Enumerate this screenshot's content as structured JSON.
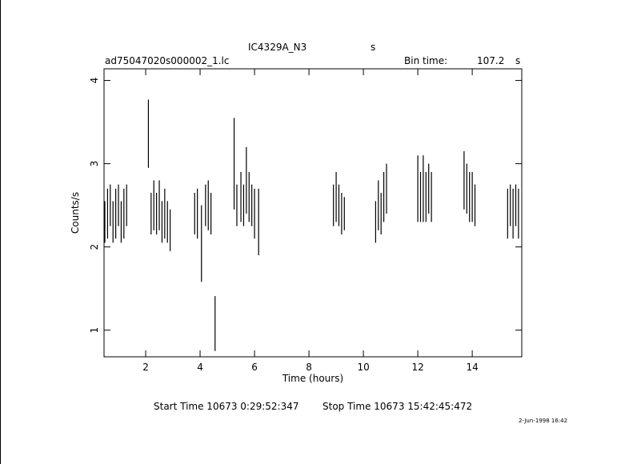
{
  "chart_data": {
    "type": "errorbar",
    "title": "IC4329A_N3",
    "title_unit": "s",
    "file_name": "ad75047020s000002_1.lc",
    "bin_time_label": "Bin time:",
    "bin_time": "107.2",
    "bin_time_unit": "s",
    "xlabel": "Time (hours)",
    "ylabel": "Counts/s",
    "start_time": "Start Time 10673  0:29:52:347",
    "stop_time": "Stop Time 10673 15:42:45:472",
    "date": "2-Jun-1998 16:42",
    "color": "#000000",
    "xlim": [
      0.47,
      15.82
    ],
    "ylim": [
      0.68,
      4.14
    ],
    "xticks": [
      2,
      4,
      6,
      8,
      10,
      12,
      14
    ],
    "yticks": [
      1,
      2,
      3,
      4
    ],
    "x": [
      0.5,
      0.6,
      0.7,
      0.8,
      0.9,
      1.0,
      1.1,
      1.2,
      1.3,
      2.1,
      2.2,
      2.3,
      2.4,
      2.5,
      2.6,
      2.7,
      2.8,
      2.9,
      3.8,
      3.9,
      4.05,
      4.2,
      4.3,
      4.4,
      4.55,
      5.25,
      5.35,
      5.5,
      5.6,
      5.7,
      5.8,
      5.9,
      6.0,
      6.15,
      8.9,
      9.0,
      9.1,
      9.2,
      9.3,
      10.45,
      10.55,
      10.65,
      10.75,
      10.85,
      12.0,
      12.1,
      12.2,
      12.3,
      12.4,
      12.5,
      13.7,
      13.8,
      13.9,
      14.0,
      14.1,
      15.3,
      15.4,
      15.5,
      15.6,
      15.7
    ],
    "values": [
      2.3,
      2.4,
      2.5,
      2.3,
      2.4,
      2.5,
      2.3,
      2.4,
      2.5,
      3.36,
      2.4,
      2.5,
      2.4,
      2.5,
      2.3,
      2.4,
      2.3,
      2.2,
      2.4,
      2.4,
      2.04,
      2.5,
      2.5,
      2.4,
      1.08,
      3.0,
      2.5,
      2.6,
      2.5,
      2.8,
      2.6,
      2.5,
      2.4,
      2.3,
      2.5,
      2.6,
      2.5,
      2.4,
      2.4,
      2.3,
      2.5,
      2.4,
      2.6,
      2.7,
      2.7,
      2.6,
      2.7,
      2.6,
      2.7,
      2.6,
      2.8,
      2.7,
      2.6,
      2.6,
      2.5,
      2.4,
      2.5,
      2.4,
      2.5,
      2.4
    ],
    "errors": [
      0.25,
      0.3,
      0.25,
      0.25,
      0.3,
      0.25,
      0.25,
      0.3,
      0.25,
      0.41,
      0.25,
      0.3,
      0.25,
      0.3,
      0.25,
      0.3,
      0.25,
      0.25,
      0.25,
      0.3,
      0.46,
      0.25,
      0.3,
      0.25,
      0.33,
      0.55,
      0.25,
      0.3,
      0.25,
      0.4,
      0.3,
      0.25,
      0.3,
      0.4,
      0.25,
      0.3,
      0.25,
      0.25,
      0.2,
      0.25,
      0.3,
      0.25,
      0.3,
      0.3,
      0.4,
      0.3,
      0.4,
      0.3,
      0.3,
      0.3,
      0.35,
      0.3,
      0.3,
      0.3,
      0.25,
      0.3,
      0.25,
      0.3,
      0.25,
      0.3
    ]
  }
}
